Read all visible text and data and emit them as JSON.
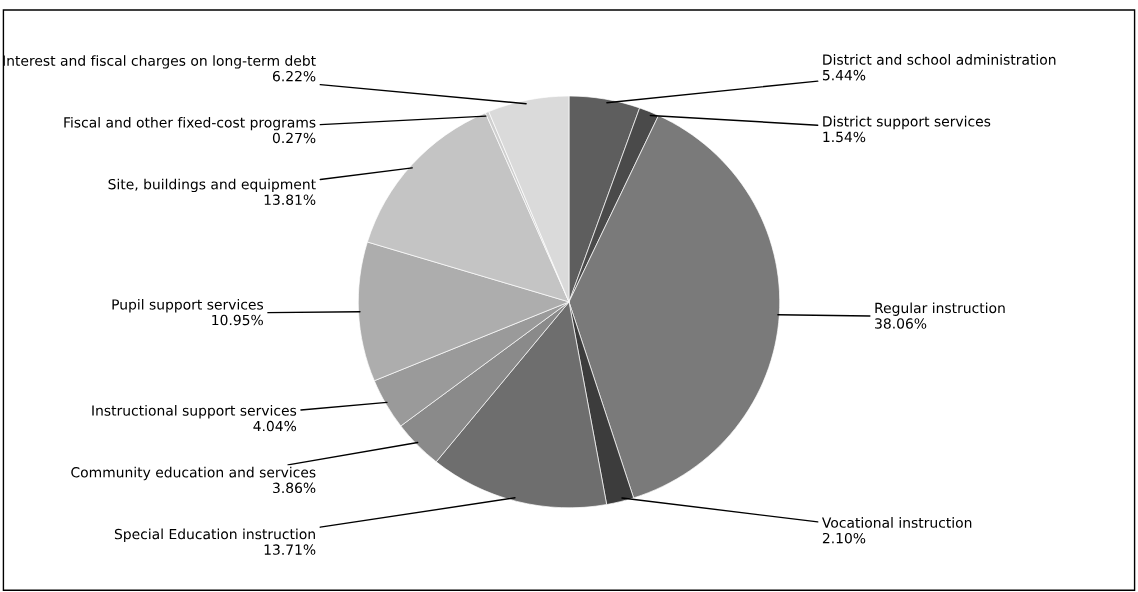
{
  "chart_data": {
    "type": "pie",
    "categories": [
      "District and school administration",
      "District support services",
      "Regular instruction",
      "Vocational instruction",
      "Special Education instruction",
      "Community education and services",
      "Instructional support services",
      "Pupil support services",
      "Site, buildings and equipment",
      "Fiscal and other fixed-cost programs",
      "Interest and fiscal charges on long-term debt"
    ],
    "values": [
      5.44,
      1.54,
      38.06,
      2.1,
      13.71,
      3.86,
      4.04,
      10.95,
      13.81,
      0.27,
      6.22
    ],
    "value_labels": [
      "5.44%",
      "1.54%",
      "38.06%",
      "2.10%",
      "13.71%",
      "3.86%",
      "4.04%",
      "10.95%",
      "13.81%",
      "0.27%",
      "6.22%"
    ],
    "colors": [
      "#5e5e5e",
      "#4a4a4a",
      "#7a7a7a",
      "#3c3c3c",
      "#6e6e6e",
      "#8a8a8a",
      "#9a9a9a",
      "#adadad",
      "#c4c4c4",
      "#cfcfcf",
      "#dadada"
    ],
    "legend": false
  }
}
